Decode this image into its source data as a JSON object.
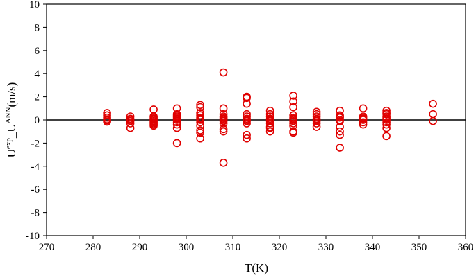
{
  "chart_data": {
    "type": "scatter",
    "title": "",
    "xlabel": "T(K)",
    "ylabel": {
      "base1": "U",
      "sup1": "exp",
      "middle": "_U",
      "sup2": "ANN",
      "tail": "(m/s)"
    },
    "xlim": [
      270,
      360
    ],
    "ylim": [
      -10,
      10
    ],
    "x_ticks": [
      "270",
      "280",
      "290",
      "300",
      "310",
      "320",
      "330",
      "340",
      "350",
      "360"
    ],
    "y_ticks": [
      "10",
      "8",
      "6",
      "4",
      "2",
      "0",
      "-2",
      "-4",
      "-6",
      "-8",
      "-10"
    ],
    "x_tick_values": [
      270,
      280,
      290,
      300,
      310,
      320,
      330,
      340,
      350,
      360
    ],
    "y_tick_values": [
      10,
      8,
      6,
      4,
      2,
      0,
      -2,
      -4,
      -6,
      -8,
      -10
    ],
    "zero_line": 0,
    "grid": false,
    "legend": "none",
    "marker_color": "#e00000",
    "axis_color": "#000000",
    "x": [
      283,
      283,
      283,
      283,
      283,
      283,
      288,
      288,
      288,
      288,
      288,
      288,
      293,
      293,
      293,
      293,
      293,
      293,
      293,
      293,
      293,
      293,
      298,
      298,
      298,
      298,
      298,
      298,
      298,
      298,
      298,
      298,
      298,
      303,
      303,
      303,
      303,
      303,
      303,
      303,
      303,
      303,
      303,
      303,
      303,
      308,
      308,
      308,
      308,
      308,
      308,
      308,
      308,
      308,
      308,
      308,
      308,
      313,
      313,
      313,
      313,
      313,
      313,
      313,
      313,
      313,
      313,
      313,
      318,
      318,
      318,
      318,
      318,
      318,
      318,
      318,
      318,
      318,
      323,
      323,
      323,
      323,
      323,
      323,
      323,
      323,
      323,
      323,
      323,
      323,
      328,
      328,
      328,
      328,
      328,
      328,
      328,
      328,
      333,
      333,
      333,
      333,
      333,
      333,
      333,
      333,
      333,
      333,
      338,
      338,
      338,
      338,
      338,
      338,
      338,
      343,
      343,
      343,
      343,
      343,
      343,
      343,
      343,
      343,
      343,
      343,
      353,
      353,
      353
    ],
    "y": [
      0.6,
      0.4,
      0.2,
      0.05,
      -0.05,
      -0.15,
      0.3,
      0.1,
      0,
      -0.1,
      -0.3,
      -0.7,
      0.9,
      0.3,
      0.2,
      0.1,
      0,
      -0.1,
      -0.2,
      -0.3,
      -0.4,
      -0.5,
      1.0,
      0.5,
      0.4,
      0.3,
      0.2,
      0.1,
      0,
      -0.2,
      -0.4,
      -0.7,
      -2.0,
      1.3,
      1.1,
      0.6,
      0.4,
      0.2,
      0.1,
      0,
      -0.2,
      -0.5,
      -0.9,
      -1.1,
      -1.6,
      4.1,
      1.0,
      0.5,
      0.3,
      0.2,
      0.1,
      0,
      -0.1,
      -0.3,
      -0.8,
      -1.0,
      -3.7,
      2.0,
      1.9,
      1.4,
      0.5,
      0.3,
      0.1,
      0,
      -0.1,
      -0.3,
      -1.3,
      -1.6,
      0.8,
      0.5,
      0.3,
      0.1,
      0,
      -0.1,
      -0.3,
      -0.6,
      -0.7,
      -1.0,
      2.1,
      1.6,
      1.1,
      0.4,
      0.2,
      0.1,
      0,
      -0.1,
      -0.3,
      -0.5,
      -1.0,
      -1.1,
      0.7,
      0.5,
      0.3,
      0.1,
      0,
      -0.1,
      -0.3,
      -0.6,
      0.8,
      0.4,
      0.3,
      0.2,
      0,
      -0.1,
      -0.6,
      -1.0,
      -1.3,
      -2.4,
      1.0,
      0.3,
      0.2,
      0.1,
      0,
      -0.2,
      -0.4,
      0.8,
      0.6,
      0.5,
      0.3,
      0.2,
      0.1,
      0,
      -0.2,
      -0.4,
      -0.7,
      -1.4,
      1.4,
      0.5,
      -0.1
    ]
  }
}
